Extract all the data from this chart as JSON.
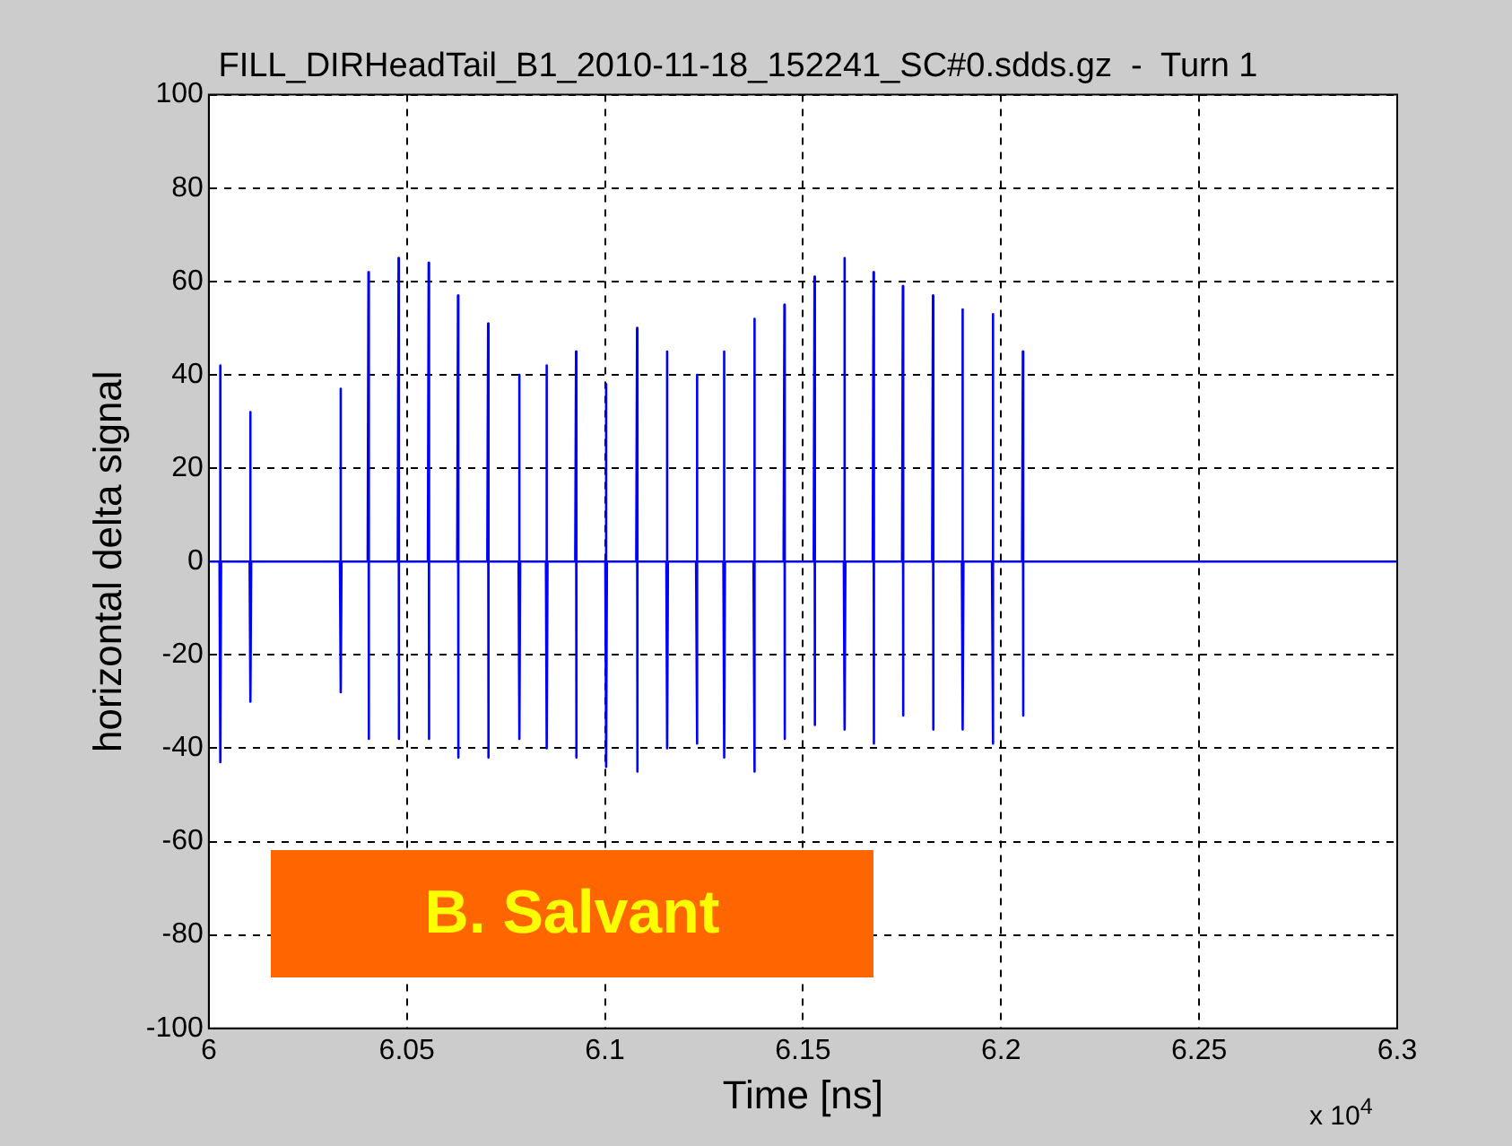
{
  "chart_data": {
    "type": "line",
    "title": "FILL_DIRHeadTail_B1_2010-11-18_152241_SC#0.sdds.gz  -  Turn 1",
    "xlabel": "Time [ns]",
    "ylabel": "horizontal delta signal",
    "annotations": [
      "B. Salvant",
      "x 10$^{4}$"
    ],
    "series": [
      {
        "color": "#0000ff",
        "x": [
          6.0,
          6.0027,
          6.0029,
          6.0029,
          6.0031,
          6.0103,
          6.0105,
          6.0105,
          6.0107,
          6.0331,
          6.0333,
          6.0333,
          6.0335,
          6.0401,
          6.0403,
          6.0403,
          6.0405,
          6.0477,
          6.0479,
          6.0479,
          6.0481,
          6.0553,
          6.0555,
          6.0555,
          6.0557,
          6.0627,
          6.0629,
          6.0629,
          6.0631,
          6.0703,
          6.0705,
          6.0705,
          6.0707,
          6.0782,
          6.0784,
          6.0784,
          6.0786,
          6.0851,
          6.0853,
          6.0853,
          6.0855,
          6.0925,
          6.0927,
          6.0927,
          6.0929,
          6.1001,
          6.1003,
          6.1003,
          6.1005,
          6.1079,
          6.1081,
          6.1081,
          6.1083,
          6.1155,
          6.1157,
          6.1157,
          6.1159,
          6.123,
          6.1232,
          6.1232,
          6.1234,
          6.1299,
          6.1301,
          6.1301,
          6.1303,
          6.1375,
          6.1377,
          6.1377,
          6.1379,
          6.1451,
          6.1453,
          6.1453,
          6.1455,
          6.1527,
          6.1529,
          6.1529,
          6.1531,
          6.1603,
          6.1605,
          6.1605,
          6.1607,
          6.1676,
          6.1678,
          6.1678,
          6.168,
          6.175,
          6.1752,
          6.1752,
          6.1754,
          6.1826,
          6.1828,
          6.1828,
          6.183,
          6.1901,
          6.1903,
          6.1903,
          6.1905,
          6.1977,
          6.1979,
          6.1979,
          6.1981,
          6.2053,
          6.2055,
          6.2055,
          6.2057,
          6.3
        ],
        "values": [
          0,
          0,
          42,
          -43,
          0,
          0,
          32,
          -30,
          0,
          0,
          37,
          -28,
          0,
          0,
          62,
          -38,
          0,
          0,
          65,
          -38,
          0,
          0,
          64,
          -38,
          0,
          0,
          57,
          -42,
          0,
          0,
          51,
          -42,
          0,
          0,
          40,
          -38,
          0,
          0,
          42,
          -40,
          0,
          0,
          45,
          -42,
          0,
          0,
          38,
          -44,
          0,
          0,
          50,
          -45,
          0,
          0,
          45,
          -40,
          0,
          0,
          40,
          -39,
          0,
          0,
          45,
          -42,
          0,
          0,
          52,
          -45,
          0,
          0,
          55,
          -38,
          0,
          0,
          61,
          -35,
          0,
          0,
          65,
          -36,
          0,
          0,
          62,
          -39,
          0,
          0,
          59,
          -33,
          0,
          0,
          57,
          -36,
          0,
          0,
          54,
          -36,
          0,
          0,
          53,
          -39,
          0,
          0,
          45,
          -33,
          0,
          0
        ]
      }
    ],
    "xlim": [
      6,
      6.3
    ],
    "xticks": [
      6,
      6.05,
      6.1,
      6.15,
      6.2,
      6.25,
      6.3
    ],
    "ylim": [
      -100,
      100
    ],
    "yticks": [
      -100,
      -80,
      -60,
      -40,
      -20,
      0,
      20,
      40,
      60,
      80,
      100
    ],
    "grid": true,
    "legend": false
  }
}
